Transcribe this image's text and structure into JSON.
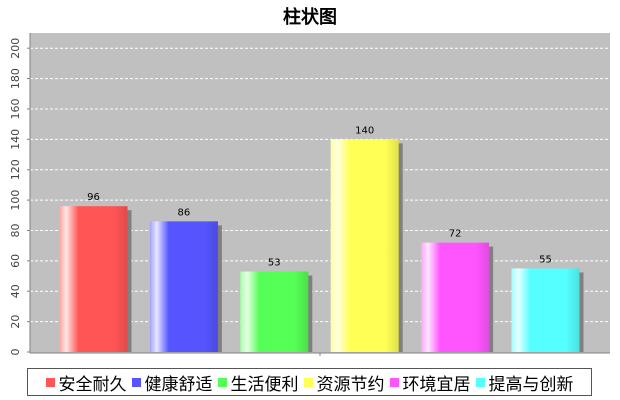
{
  "chart_data": {
    "type": "bar",
    "title": "柱状图",
    "categories": [
      "安全耐久",
      "健康舒适",
      "生活便利",
      "资源节约",
      "环境宜居",
      "提高与创新"
    ],
    "values": [
      96,
      86,
      53,
      140,
      72,
      55
    ],
    "colors": [
      "#ff5555",
      "#5555ff",
      "#55ff55",
      "#ffff55",
      "#ff55ff",
      "#55ffff"
    ],
    "ylim": [
      0,
      210
    ],
    "yticks": [
      0,
      20,
      40,
      60,
      80,
      100,
      120,
      140,
      160,
      180,
      200
    ],
    "xlabel": "",
    "ylabel": "",
    "grid": true,
    "legend_position": "bottom",
    "plot_background": "#c0c0c0"
  }
}
